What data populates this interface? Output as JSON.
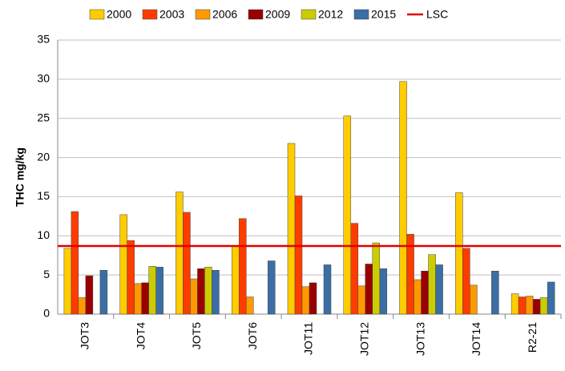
{
  "chart_data": {
    "type": "bar",
    "y_label": "THC mg/kg",
    "categories": [
      "JOT3",
      "JOT4",
      "JOT5",
      "JOT6",
      "JOT11",
      "JOT12",
      "JOT13",
      "JOT14",
      "R2-21"
    ],
    "series": [
      {
        "name": "2000",
        "color": "#ffcc00",
        "values": [
          8.4,
          12.7,
          15.6,
          8.7,
          21.8,
          25.3,
          29.7,
          15.5,
          2.6
        ]
      },
      {
        "name": "2003",
        "color": "#ff3c00",
        "values": [
          13.1,
          9.4,
          13.0,
          12.2,
          15.1,
          11.6,
          10.2,
          8.4,
          2.2
        ]
      },
      {
        "name": "2006",
        "color": "#ff9900",
        "values": [
          2.1,
          3.9,
          4.5,
          2.2,
          3.5,
          3.6,
          4.4,
          3.7,
          2.3
        ]
      },
      {
        "name": "2009",
        "color": "#990000",
        "values": [
          4.9,
          4.0,
          5.8,
          null,
          4.0,
          6.4,
          5.5,
          null,
          1.9
        ]
      },
      {
        "name": "2012",
        "color": "#cccc00",
        "values": [
          null,
          6.1,
          6.0,
          null,
          null,
          9.1,
          7.6,
          null,
          2.1
        ]
      },
      {
        "name": "2015",
        "color": "#3a6ea5",
        "values": [
          5.6,
          6.0,
          5.6,
          6.8,
          6.3,
          5.8,
          6.3,
          5.5,
          4.1
        ]
      }
    ],
    "reference_line": {
      "name": "LSC",
      "color": "#e00000",
      "value": 8.7
    },
    "ylim": [
      0,
      35
    ],
    "yticks": [
      0,
      5,
      10,
      15,
      20,
      25,
      30,
      35
    ],
    "grid": true
  }
}
